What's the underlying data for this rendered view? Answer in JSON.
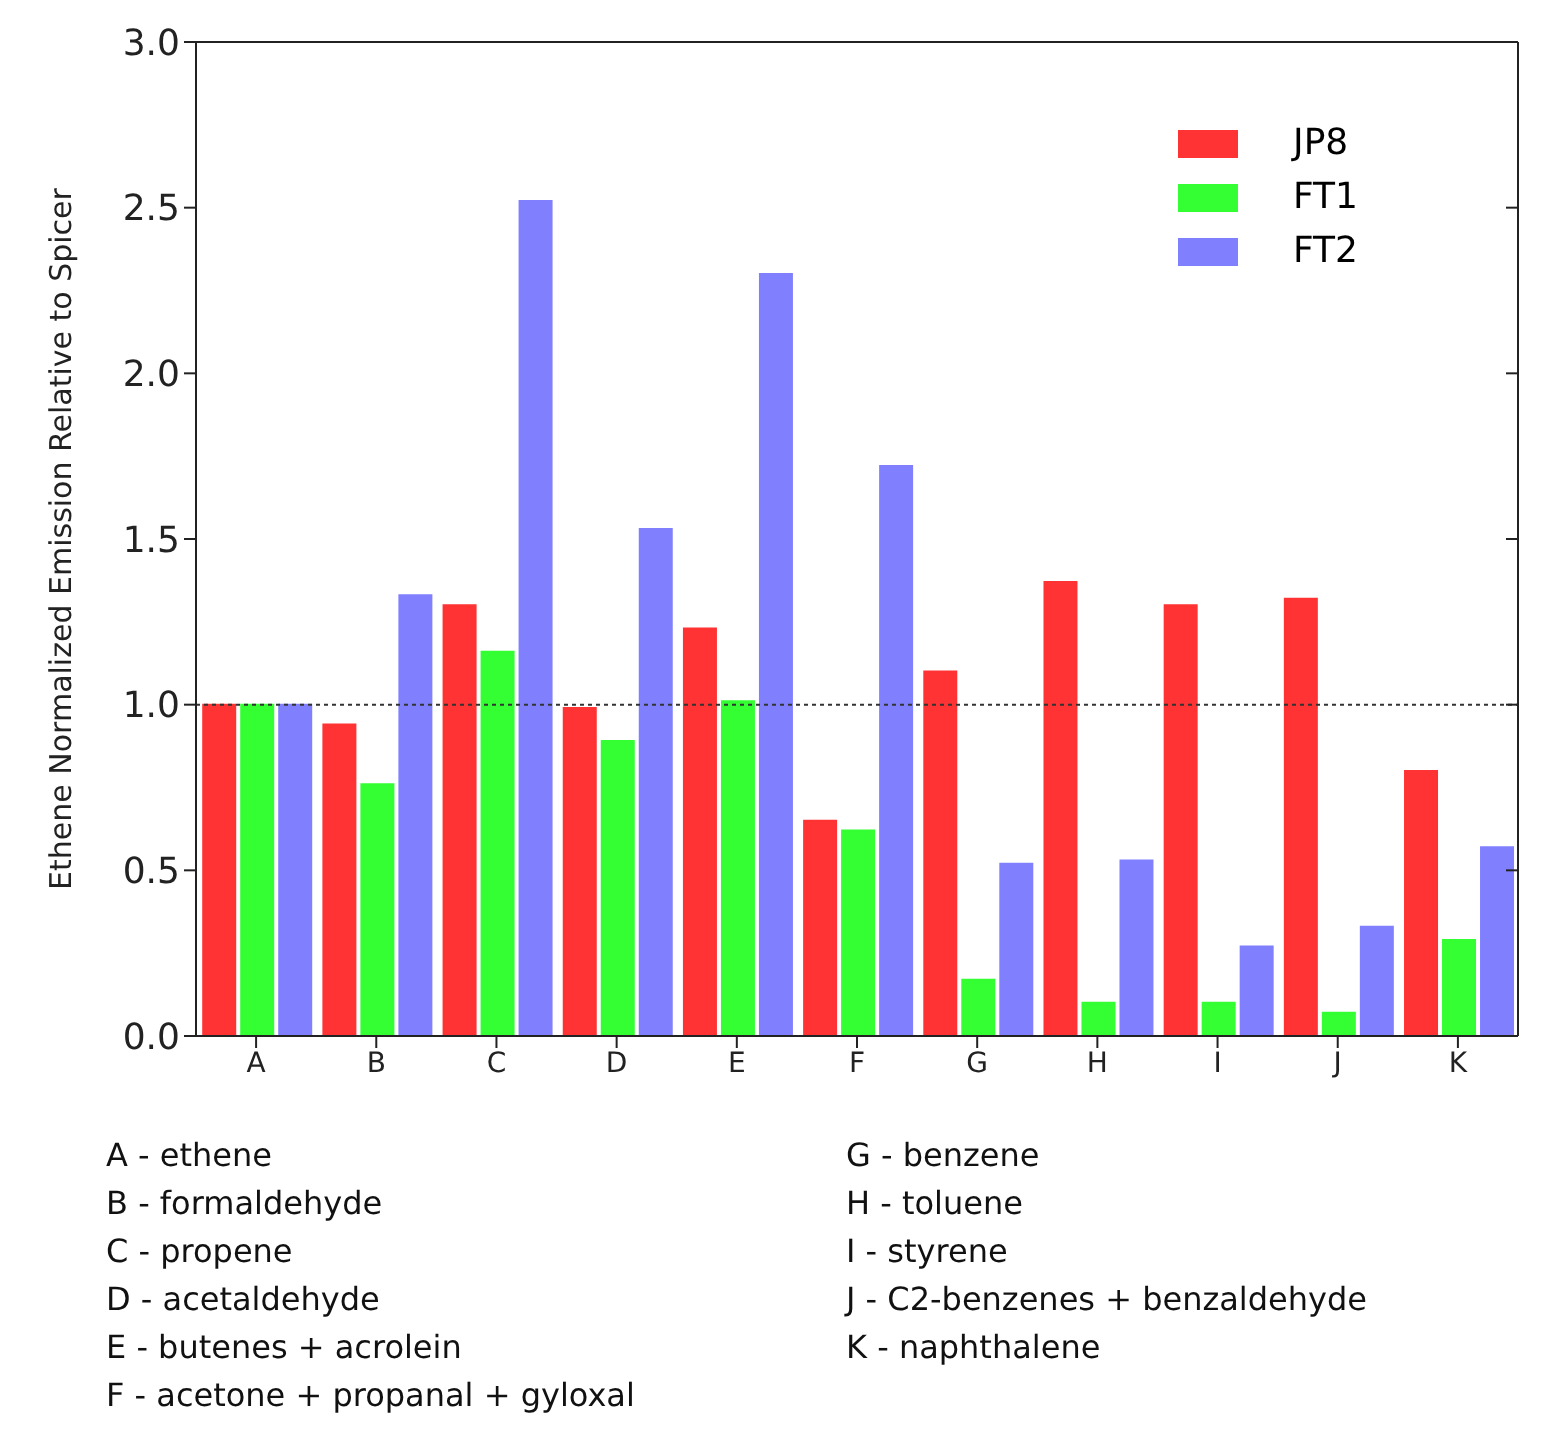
{
  "chart_data": {
    "type": "bar",
    "ylabel": "Ethene Normalized Emission Relative to Spicer",
    "categories": [
      "A",
      "B",
      "C",
      "D",
      "E",
      "F",
      "G",
      "H",
      "I",
      "J",
      "K"
    ],
    "series": [
      {
        "name": "JP8",
        "color": "#ff3333",
        "values": [
          1.0,
          0.94,
          1.3,
          0.99,
          1.23,
          0.65,
          1.1,
          1.37,
          1.3,
          1.32,
          0.8
        ]
      },
      {
        "name": "FT1",
        "color": "#33ff33",
        "values": [
          1.0,
          0.76,
          1.16,
          0.89,
          1.01,
          0.62,
          0.17,
          0.1,
          0.1,
          0.07,
          0.29
        ]
      },
      {
        "name": "FT2",
        "color": "#8080ff",
        "values": [
          1.0,
          1.33,
          2.52,
          1.53,
          2.3,
          1.72,
          0.52,
          0.53,
          0.27,
          0.33,
          0.57
        ]
      }
    ],
    "ylim": [
      0,
      3
    ],
    "yticks": [
      {
        "value": 0,
        "label": "0.0"
      },
      {
        "value": 0.5,
        "label": "0.5"
      },
      {
        "value": 1,
        "label": "1.0"
      },
      {
        "value": 1.5,
        "label": "1.5"
      },
      {
        "value": 2,
        "label": "2.0"
      },
      {
        "value": 2.5,
        "label": "2.5"
      },
      {
        "value": 3,
        "label": "3.0"
      }
    ],
    "ref_lines": [
      {
        "axis": "y",
        "value": 1,
        "line_style": "dotted",
        "color": "#333333"
      }
    ],
    "legend": "top right",
    "grid": false,
    "annotations": [
      "A - ethene",
      "B - formaldehyde",
      "C - propene",
      "D - acetaldehyde",
      "E - butenes + acrolein",
      "F - acetone + propanal + gyloxal",
      "G - benzene",
      "H - toluene",
      "I - styrene",
      "J - C2-benzenes + benzaldehyde",
      "K - naphthalene"
    ]
  }
}
